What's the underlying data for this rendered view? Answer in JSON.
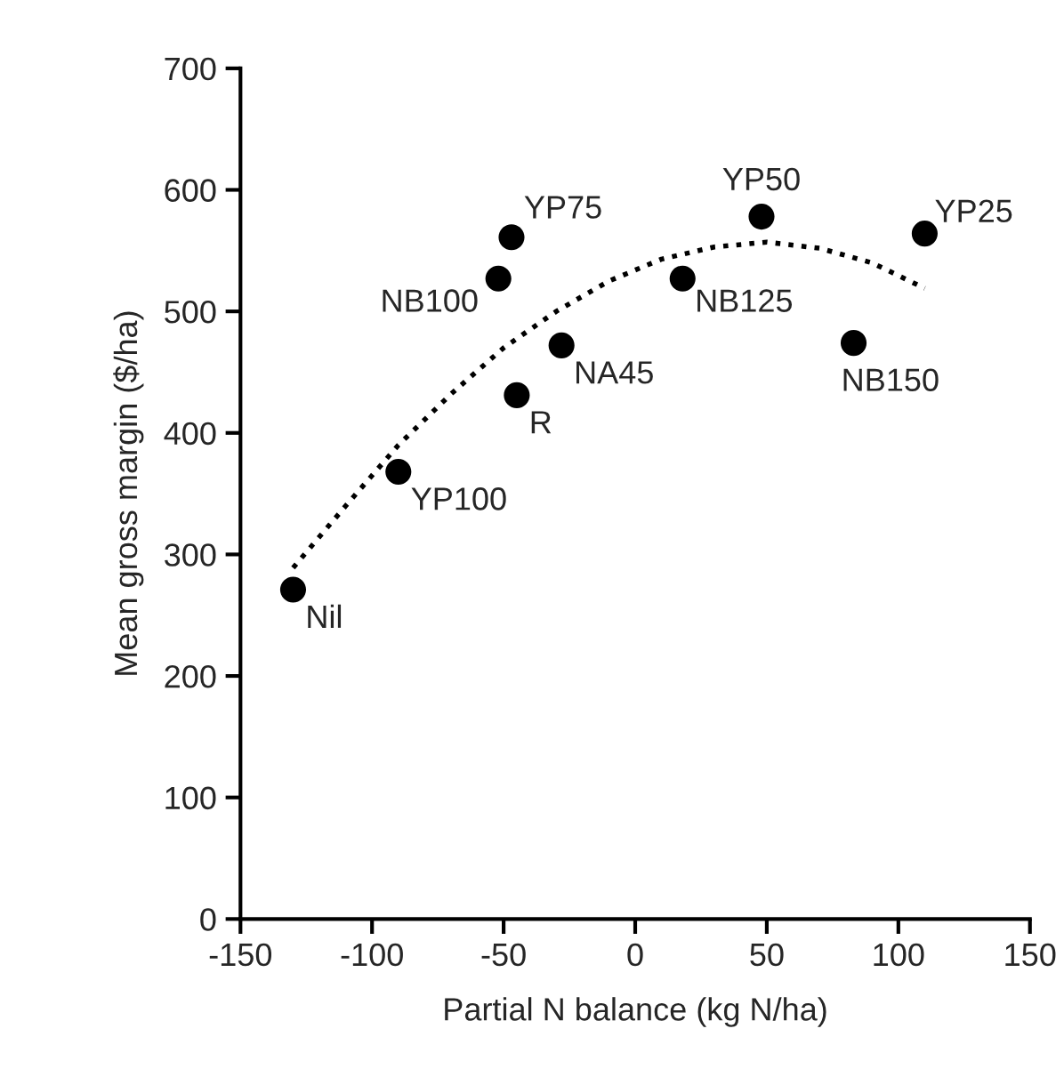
{
  "chart_data": {
    "type": "scatter",
    "xlabel": "Partial N balance (kg N/ha)",
    "ylabel": "Mean gross margin ($/ha)",
    "xlim": [
      -150,
      150
    ],
    "xticks": [
      -150,
      -100,
      -50,
      0,
      50,
      100,
      150
    ],
    "ylim": [
      0,
      700
    ],
    "yticks": [
      0,
      100,
      200,
      300,
      400,
      500,
      600,
      700
    ],
    "grid": false,
    "legend": false,
    "series": [
      {
        "color": "#000000",
        "marker": "circle",
        "x": [
          -130,
          -90,
          -52,
          -47,
          -45,
          -28,
          18,
          48,
          83,
          110
        ],
        "values": [
          271,
          368,
          527,
          561,
          431,
          472,
          527,
          578,
          474,
          564
        ]
      },
      {
        "type": "line",
        "color": "#000000",
        "line_style": "dotted",
        "marker": "none",
        "x": [
          -130,
          -110,
          -90,
          -70,
          -50,
          -30,
          -10,
          10,
          30,
          50,
          70,
          90,
          110
        ],
        "values": [
          289,
          340,
          390,
          432,
          470,
          500,
          525,
          543,
          553,
          557,
          552,
          540,
          519
        ]
      }
    ],
    "annotations": [
      {
        "text": "Nil",
        "x": -130,
        "y": 271
      },
      {
        "text": "YP100",
        "x": -90,
        "y": 368
      },
      {
        "text": "NB100",
        "x": -52,
        "y": 527
      },
      {
        "text": "YP75",
        "x": -47,
        "y": 561
      },
      {
        "text": "R",
        "x": -45,
        "y": 431
      },
      {
        "text": "NA45",
        "x": -28,
        "y": 472
      },
      {
        "text": "NB125",
        "x": 18,
        "y": 527
      },
      {
        "text": "YP50",
        "x": 48,
        "y": 578
      },
      {
        "text": "NB150",
        "x": 83,
        "y": 474
      },
      {
        "text": "YP25",
        "x": 110,
        "y": 564
      }
    ]
  }
}
